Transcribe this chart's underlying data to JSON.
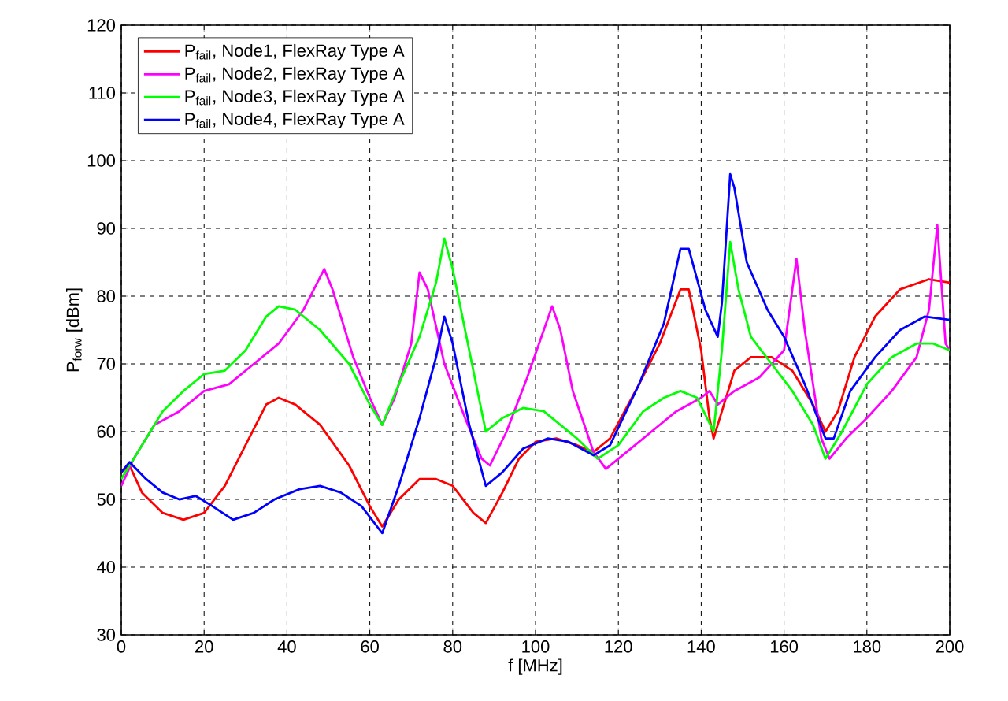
{
  "chart_data": {
    "type": "line",
    "xlabel": "f [MHz]",
    "ylabel": "P$_{forw}$ [dBm]",
    "xlim": [
      0,
      200
    ],
    "ylim": [
      30,
      120
    ],
    "xticks": [
      0,
      20,
      40,
      60,
      80,
      100,
      120,
      140,
      160,
      180,
      200
    ],
    "yticks": [
      30,
      40,
      50,
      60,
      70,
      80,
      90,
      100,
      110,
      120
    ],
    "grid": true,
    "legend": "top left",
    "line_style": "solid",
    "series": [
      {
        "name": "P$_{fail}$, Node1, FlexRay Type A",
        "color": "#ff0000",
        "x": [
          0,
          2,
          5,
          10,
          15,
          20,
          25,
          30,
          35,
          38,
          42,
          48,
          55,
          60,
          63,
          67,
          72,
          76,
          80,
          85,
          88,
          92,
          96,
          100,
          105,
          110,
          114,
          118,
          125,
          130,
          135,
          137,
          140,
          142,
          143,
          145,
          148,
          152,
          157,
          162,
          167,
          170,
          173,
          177,
          182,
          188,
          195,
          200
        ],
        "values": [
          54,
          55,
          51,
          48,
          47,
          48,
          52,
          58,
          64,
          65,
          64,
          61,
          55,
          49,
          46,
          50,
          53,
          53,
          52,
          48,
          46.5,
          51,
          56,
          58.5,
          59,
          58,
          57,
          59,
          67,
          73,
          81,
          81,
          72,
          62,
          59,
          63,
          69,
          71,
          71,
          69,
          64,
          60,
          63,
          71,
          77,
          81,
          82.5,
          82
        ]
      },
      {
        "name": "P$_{fail}$, Node2, FlexRay Type A",
        "color": "#ff00ff",
        "x": [
          0,
          3,
          8,
          14,
          20,
          26,
          32,
          38,
          44,
          49,
          51,
          56,
          60,
          63,
          66,
          70,
          72,
          74,
          78,
          83,
          87,
          89,
          93,
          98,
          102,
          104,
          106,
          109,
          114,
          117,
          122,
          128,
          134,
          140,
          142,
          144,
          148,
          154,
          160,
          163,
          165,
          169,
          171,
          175,
          180,
          186,
          192,
          195,
          197,
          199,
          200
        ],
        "values": [
          52,
          56,
          61,
          63,
          66,
          67,
          70,
          73,
          78,
          84,
          81,
          71,
          65,
          61,
          65,
          73,
          83.5,
          81,
          70,
          62,
          56,
          55,
          60,
          68,
          75,
          78.5,
          75,
          66,
          57,
          54.5,
          57,
          60,
          63,
          65,
          66,
          64,
          66,
          68,
          72,
          85.5,
          75,
          59,
          56,
          59,
          62,
          66,
          71,
          78,
          90.5,
          73,
          72
        ]
      },
      {
        "name": "P$_{fail}$, Node3, FlexRay Type A",
        "color": "#00ff00",
        "x": [
          0,
          5,
          10,
          15,
          20,
          25,
          30,
          35,
          38,
          42,
          48,
          55,
          60,
          63,
          67,
          72,
          76,
          78,
          80,
          84,
          88,
          92,
          97,
          102,
          110,
          115,
          120,
          126,
          131,
          135,
          139,
          143,
          145,
          147,
          149,
          152,
          157,
          162,
          167,
          170,
          174,
          180,
          186,
          192,
          196,
          200
        ],
        "values": [
          53,
          58,
          63,
          66,
          68.5,
          69,
          72,
          77,
          78.5,
          78,
          75,
          70,
          64,
          61,
          67,
          74,
          82,
          88.5,
          84,
          72,
          60,
          62,
          63.5,
          63,
          59,
          56,
          58,
          63,
          65,
          66,
          65,
          60,
          72,
          88,
          81,
          74,
          70,
          66,
          61,
          56,
          60,
          67,
          71,
          73,
          73,
          72
        ]
      },
      {
        "name": "P$_{fail}$, Node4, FlexRay Type A",
        "color": "#0000ff",
        "x": [
          0,
          2,
          6,
          10,
          14,
          18,
          22,
          27,
          32,
          37,
          43,
          48,
          53,
          58,
          63,
          67,
          72,
          76,
          78,
          80,
          84,
          88,
          92,
          97,
          103,
          108,
          114,
          118,
          125,
          131,
          135,
          137,
          141,
          144,
          145,
          147,
          148,
          151,
          156,
          160,
          165,
          170,
          172,
          176,
          182,
          188,
          194,
          200
        ],
        "values": [
          54,
          55.5,
          53,
          51,
          50,
          50.5,
          49,
          47,
          48,
          50,
          51.5,
          52,
          51,
          49,
          45,
          52,
          62,
          71,
          77,
          73,
          61,
          52,
          54,
          57.5,
          59,
          58.5,
          56.5,
          58,
          67,
          76,
          87,
          87,
          78,
          74,
          79,
          98,
          96,
          85,
          78,
          74,
          67,
          59,
          59,
          66,
          71,
          75,
          77,
          76.5
        ]
      }
    ]
  }
}
